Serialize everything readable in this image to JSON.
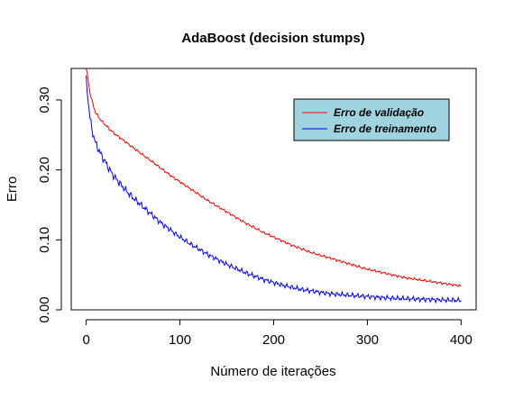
{
  "chart_data": {
    "type": "line",
    "title": "AdaBoost (decision stumps)",
    "xlabel": "Número de iterações",
    "ylabel": "Erro",
    "xlim": [
      -16,
      416
    ],
    "ylim": [
      0,
      0.345
    ],
    "xticks": [
      0,
      100,
      200,
      300,
      400
    ],
    "xtick_labels": [
      "0",
      "100",
      "200",
      "300",
      "400"
    ],
    "yticks": [
      0,
      0.1,
      0.2,
      0.3
    ],
    "ytick_labels": [
      "0.00",
      "0.10",
      "0.20",
      "0.30"
    ],
    "grid": false,
    "legend_position": "top-right",
    "legend_background": "#9fd3e0",
    "series": [
      {
        "name": "Erro de validação",
        "color": "#ff0000",
        "x": [
          0,
          2,
          4,
          6,
          8,
          10,
          15,
          20,
          25,
          30,
          40,
          50,
          60,
          70,
          80,
          90,
          100,
          110,
          120,
          130,
          140,
          150,
          160,
          170,
          180,
          190,
          200,
          210,
          220,
          230,
          240,
          250,
          260,
          270,
          280,
          290,
          300,
          310,
          320,
          330,
          340,
          350,
          360,
          370,
          380,
          390,
          400
        ],
        "y": [
          0.345,
          0.33,
          0.31,
          0.3,
          0.29,
          0.282,
          0.272,
          0.265,
          0.258,
          0.252,
          0.242,
          0.232,
          0.222,
          0.212,
          0.202,
          0.192,
          0.183,
          0.174,
          0.165,
          0.156,
          0.148,
          0.14,
          0.132,
          0.124,
          0.117,
          0.11,
          0.104,
          0.098,
          0.092,
          0.087,
          0.082,
          0.078,
          0.074,
          0.07,
          0.066,
          0.062,
          0.058,
          0.055,
          0.052,
          0.049,
          0.046,
          0.044,
          0.042,
          0.04,
          0.038,
          0.036,
          0.034
        ]
      },
      {
        "name": "Erro de treinamento",
        "color": "#0000ff",
        "x": [
          0,
          2,
          4,
          6,
          8,
          10,
          15,
          20,
          25,
          30,
          40,
          50,
          60,
          70,
          80,
          90,
          100,
          110,
          120,
          130,
          140,
          150,
          160,
          170,
          180,
          190,
          200,
          210,
          220,
          230,
          240,
          250,
          260,
          270,
          280,
          290,
          300,
          310,
          320,
          330,
          340,
          350,
          360,
          370,
          380,
          390,
          400
        ],
        "y": [
          0.33,
          0.3,
          0.275,
          0.258,
          0.248,
          0.238,
          0.224,
          0.212,
          0.2,
          0.19,
          0.174,
          0.16,
          0.148,
          0.136,
          0.124,
          0.114,
          0.104,
          0.095,
          0.087,
          0.079,
          0.072,
          0.065,
          0.059,
          0.053,
          0.048,
          0.043,
          0.039,
          0.035,
          0.032,
          0.029,
          0.027,
          0.025,
          0.023,
          0.022,
          0.021,
          0.02,
          0.019,
          0.018,
          0.017,
          0.0165,
          0.016,
          0.0155,
          0.015,
          0.0145,
          0.014,
          0.0138,
          0.0135
        ]
      }
    ]
  }
}
